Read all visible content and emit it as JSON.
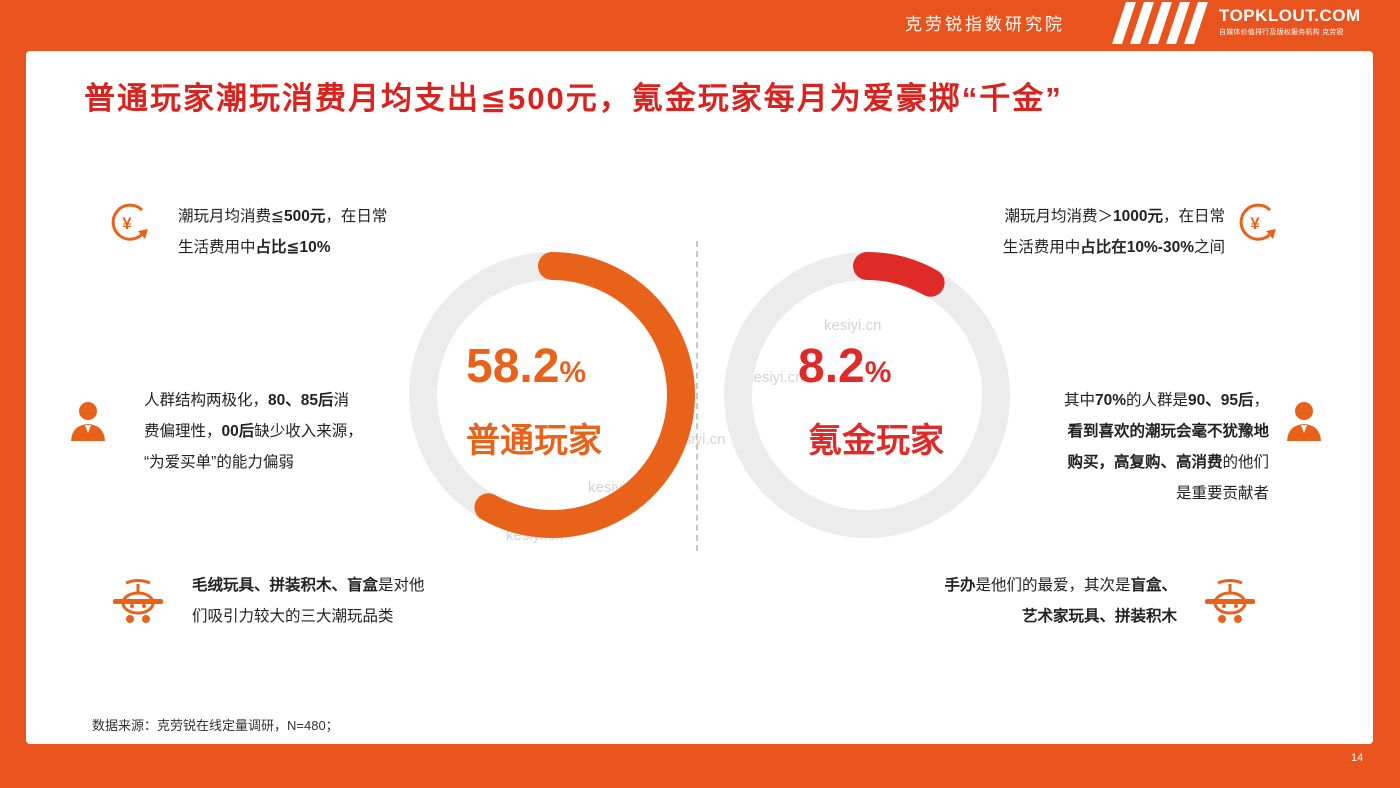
{
  "header": {
    "institute": "克劳锐指数研究院",
    "brand": "TOPKLOUT.COM",
    "brand_sub": "自媒体价值排行及版权服务机构  克劳锐"
  },
  "title": "普通玩家潮玩消费月均支出≦500元，氪金玩家每月为爱豪掷“千金”",
  "chart_data": [
    {
      "type": "pie",
      "categories": [
        "普通玩家"
      ],
      "values": [
        58.2
      ],
      "label": "普通玩家",
      "value_text": "58.2",
      "unit": "%",
      "color": "#e9621a",
      "track_color": "#ececec"
    },
    {
      "type": "pie",
      "categories": [
        "氪金玩家"
      ],
      "values": [
        8.2
      ],
      "label": "氪金玩家",
      "value_text": "8.2",
      "unit": "%",
      "color": "#e02a27",
      "track_color": "#ececec"
    }
  ],
  "left": {
    "item1": {
      "icon": "yuan-coin-icon",
      "line1_a": "潮玩月均消费≦",
      "line1_b": "500元",
      "line1_c": "，在日常",
      "line2_a": "生活费用中",
      "line2_b": "占比≦10%"
    },
    "item2": {
      "icon": "person-icon",
      "line1_a": "人群结构两极化，",
      "line1_b": "80、85后",
      "line1_c": "消",
      "line2_a": "费偏理性，",
      "line2_b": "00后",
      "line2_c": "缺少收入来源，",
      "line3": "“为爱买单”的能力偏弱"
    },
    "item3": {
      "icon": "toy-plane-icon",
      "line1_a": "毛绒玩具、拼装积木、盲盒",
      "line1_b": "是对他",
      "line2": "们吸引力较大的三大潮玩品类"
    }
  },
  "right": {
    "item1": {
      "icon": "yuan-coin-icon",
      "line1_a": "潮玩月均消费＞",
      "line1_b": "1000元",
      "line1_c": "，在日常",
      "line2_a": "生活费用中",
      "line2_b": "占比在10%-30%",
      "line2_c": "之间"
    },
    "item2": {
      "icon": "person-icon",
      "line1_a": "其中",
      "line1_b": "70%",
      "line1_c": "的人群是",
      "line1_d": "90、95后",
      "line1_e": "，",
      "line2": "看到喜欢的潮玩会毫不犹豫地",
      "line3_a": "购买，高复购、高消费",
      "line3_b": "的他们",
      "line4": "是重要贡献者"
    },
    "item3": {
      "icon": "toy-plane-icon",
      "line1_a": "手办",
      "line1_b": "是他们的最爱，其次是",
      "line1_c": "盲盒、",
      "line2": "艺术家玩具、拼装积木"
    }
  },
  "watermark": "kesiyi.cn",
  "source": "数据来源：克劳锐在线定量调研，N=480；",
  "page_number": "14",
  "colors": {
    "background": "#e9531d",
    "title": "#d8231f",
    "accent": "#e9621a"
  }
}
